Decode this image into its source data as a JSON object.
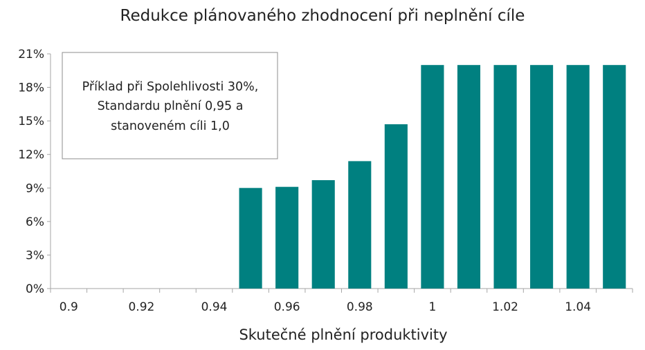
{
  "chart_data": {
    "type": "bar",
    "title": "Redukce plánovaného zhodnocení při neplnění cíle",
    "xlabel": "Skutečné plnění produktivity",
    "ylabel": "",
    "x": [
      0.9,
      0.91,
      0.92,
      0.93,
      0.94,
      0.95,
      0.96,
      0.97,
      0.98,
      0.99,
      1.0,
      1.01,
      1.02,
      1.03,
      1.04,
      1.05
    ],
    "values": [
      0,
      0,
      0,
      0,
      0,
      0.09,
      0.091,
      0.097,
      0.114,
      0.147,
      0.2,
      0.2,
      0.2,
      0.2,
      0.2,
      0.2
    ],
    "x_tick_labels": [
      "0.9",
      "0.92",
      "0.94",
      "0.96",
      "0.98",
      "1",
      "1.02",
      "1.04"
    ],
    "y_tick_labels": [
      "0%",
      "3%",
      "6%",
      "9%",
      "12%",
      "15%",
      "18%",
      "21%"
    ],
    "ylim": [
      0,
      0.21
    ],
    "grid": false,
    "bar_color": "#008080",
    "annotation": [
      "Příklad při Spolehlivosti 30%,",
      "Standardu plnění 0,95 a",
      "stanoveném cíli 1,0"
    ]
  }
}
